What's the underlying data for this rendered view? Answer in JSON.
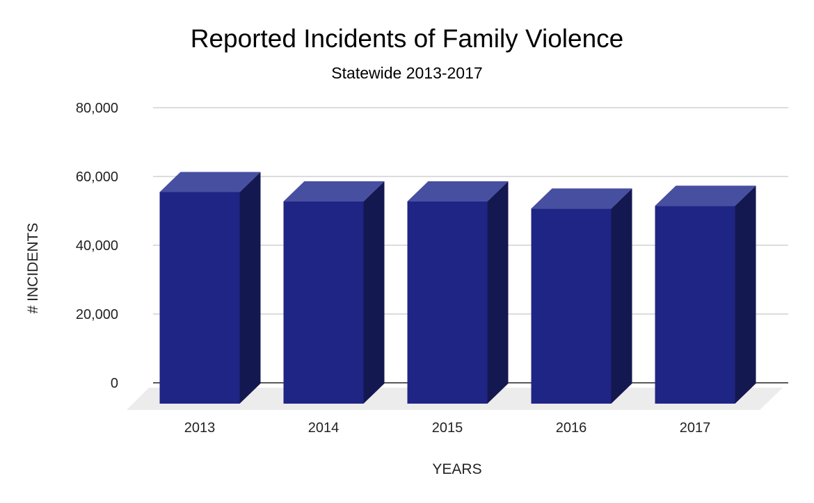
{
  "chart_data": {
    "type": "bar",
    "title": "Reported Incidents of Family Violence",
    "subtitle": "Statewide 2013-2017",
    "xlabel": "YEARS",
    "ylabel": "# INCIDENTS",
    "categories": [
      "2013",
      "2014",
      "2015",
      "2016",
      "2017"
    ],
    "values": [
      59000,
      56300,
      56300,
      54200,
      55000
    ],
    "ylim": [
      0,
      80000
    ],
    "yticks": [
      0,
      20000,
      40000,
      60000,
      80000
    ],
    "ytick_labels": [
      "0",
      "20,000",
      "40,000",
      "60,000",
      "80,000"
    ],
    "grid": true,
    "legend": "none",
    "style": "3d-column"
  },
  "colors": {
    "bar_front": "#1f2585",
    "bar_side": "#141850",
    "bar_top": "#474fa0",
    "floor": "#ececec",
    "grid": "#c8c8c8",
    "baseline": "#222222"
  }
}
